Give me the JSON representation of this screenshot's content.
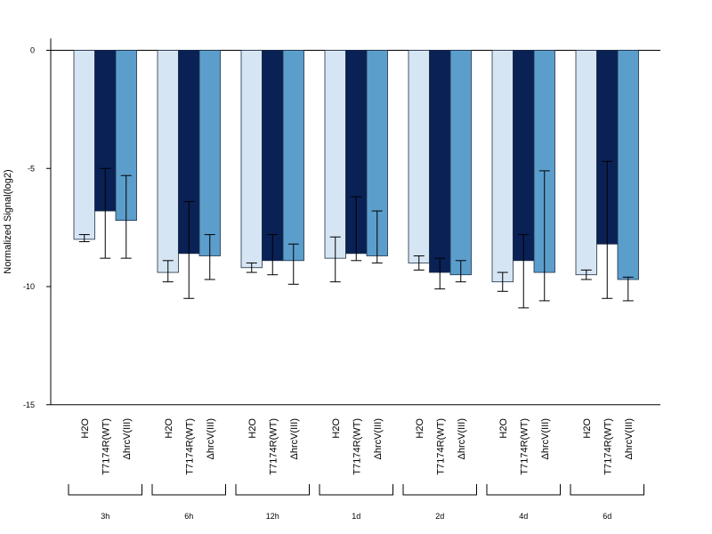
{
  "chart_data": {
    "type": "bar",
    "title": "",
    "xlabel": "",
    "ylabel": "Normalized Signal(log2)",
    "ylim": [
      -15,
      0.5
    ],
    "yticks": [
      0,
      -5,
      -10,
      -15
    ],
    "grid": false,
    "legend": "none",
    "groups": [
      "3h",
      "6h",
      "12h",
      "1d",
      "2d",
      "4d",
      "6d"
    ],
    "series": [
      {
        "name": "H2O",
        "color": "#d6e5f4",
        "values": [
          -8.0,
          -9.4,
          -9.2,
          -8.8,
          -9.0,
          -9.8,
          -9.5
        ],
        "err_low": [
          -8.1,
          -9.8,
          -9.4,
          -9.8,
          -9.3,
          -10.2,
          -9.7
        ],
        "err_high": [
          -7.8,
          -8.9,
          -9.0,
          -7.9,
          -8.7,
          -9.4,
          -9.3
        ]
      },
      {
        "name": "T7174R(WT)",
        "color": "#0a2155",
        "values": [
          -6.8,
          -8.6,
          -8.9,
          -8.6,
          -9.4,
          -8.9,
          -8.2
        ],
        "err_low": [
          -8.8,
          -10.5,
          -9.5,
          -8.9,
          -10.1,
          -10.9,
          -10.5
        ],
        "err_high": [
          -5.0,
          -6.4,
          -7.8,
          -6.2,
          -8.8,
          -7.8,
          -4.7
        ]
      },
      {
        "name": "ΔhrcV(III)",
        "color": "#5b9ecc",
        "values": [
          -7.2,
          -8.7,
          -8.9,
          -8.7,
          -9.5,
          -9.4,
          -9.7
        ],
        "err_low": [
          -8.8,
          -9.7,
          -9.9,
          -9.0,
          -9.8,
          -10.6,
          -10.6
        ],
        "err_high": [
          -5.3,
          -7.8,
          -8.2,
          -6.8,
          -8.9,
          -5.1,
          -9.6
        ]
      }
    ]
  }
}
